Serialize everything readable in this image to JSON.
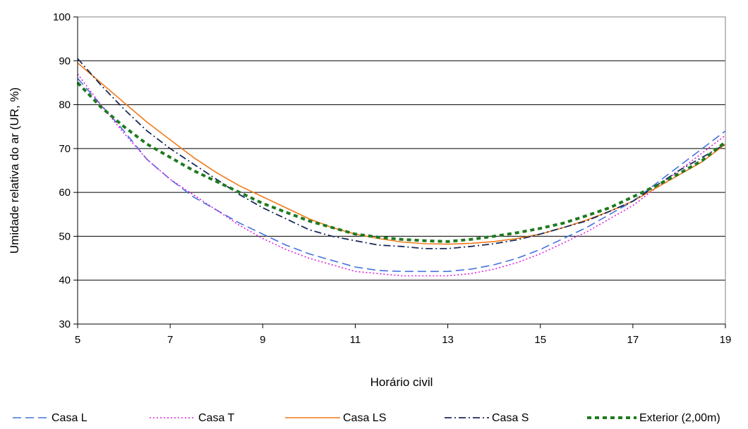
{
  "chart_data": {
    "type": "line",
    "xlabel": "Horário civil",
    "ylabel": "Umidade relativa do ar (UR, %)",
    "xlim": [
      5,
      19
    ],
    "ylim": [
      30,
      100
    ],
    "xticks": [
      "5",
      "7",
      "9",
      "11",
      "13",
      "15",
      "17",
      "19"
    ],
    "yticks": [
      "30",
      "40",
      "50",
      "60",
      "70",
      "80",
      "90",
      "100"
    ],
    "grid": "horizontal",
    "legend_position": "bottom",
    "series": [
      {
        "name": "Casa L",
        "color": "#4472E0",
        "dash": "dashed",
        "x": [
          5,
          5.5,
          6,
          6.5,
          7,
          7.5,
          8,
          8.5,
          9,
          9.5,
          10,
          10.5,
          11,
          11.5,
          12,
          12.5,
          13,
          13.5,
          14,
          14.5,
          15,
          15.5,
          16,
          16.5,
          17,
          17.5,
          18,
          18.5,
          19
        ],
        "values": [
          86,
          80,
          74,
          67.5,
          63,
          59,
          56,
          53,
          50.5,
          48,
          46,
          44.5,
          43,
          42.2,
          42,
          42,
          42,
          42.5,
          43.5,
          45,
          47,
          49.5,
          52,
          55,
          58,
          62,
          66,
          70,
          74
        ]
      },
      {
        "name": "Casa T",
        "color": "#E020E0",
        "dash": "dotted",
        "x": [
          5,
          5.5,
          6,
          6.5,
          7,
          7.5,
          8,
          8.5,
          9,
          9.5,
          10,
          10.5,
          11,
          11.5,
          12,
          12.5,
          13,
          13.5,
          14,
          14.5,
          15,
          15.5,
          16,
          16.5,
          17,
          17.5,
          18,
          18.5,
          19
        ],
        "values": [
          87,
          80,
          73.5,
          67.5,
          63,
          59.5,
          56,
          52.5,
          49.5,
          47,
          45,
          43.5,
          42,
          41.5,
          41,
          41,
          41,
          41.5,
          42.5,
          44,
          46,
          48.5,
          51,
          54,
          57,
          61,
          65,
          69,
          73
        ]
      },
      {
        "name": "Casa LS",
        "color": "#F07A1A",
        "dash": "solid",
        "x": [
          5,
          5.5,
          6,
          6.5,
          7,
          7.5,
          8,
          8.5,
          9,
          9.5,
          10,
          10.5,
          11,
          11.5,
          12,
          12.5,
          13,
          13.5,
          14,
          14.5,
          15,
          15.5,
          16,
          16.5,
          17,
          17.5,
          18,
          18.5,
          19
        ],
        "values": [
          89.5,
          85,
          80.5,
          76,
          72,
          68,
          64.5,
          61.5,
          59,
          56.5,
          54,
          52,
          50.5,
          49.5,
          48.7,
          48.3,
          48.2,
          48.4,
          48.8,
          49.5,
          50.5,
          52,
          53.7,
          55.7,
          58,
          61,
          64,
          67,
          71
        ]
      },
      {
        "name": "Casa S",
        "color": "#1A2A5A",
        "dash": "dashdot",
        "x": [
          5,
          5.5,
          6,
          6.5,
          7,
          7.5,
          8,
          8.5,
          9,
          9.5,
          10,
          10.5,
          11,
          11.5,
          12,
          12.5,
          13,
          13.5,
          14,
          14.5,
          15,
          15.5,
          16,
          16.5,
          17,
          17.5,
          18,
          18.5,
          19
        ],
        "values": [
          90.5,
          84.5,
          79,
          74,
          70,
          66.5,
          63,
          59.5,
          56.5,
          54,
          51.5,
          50,
          49,
          48,
          47.7,
          47.2,
          47.2,
          47.7,
          48.3,
          49.2,
          50.5,
          52,
          53.5,
          55.7,
          58,
          61.5,
          65,
          68,
          71
        ]
      },
      {
        "name": "Exterior (2,00m)",
        "color": "#1E7A1E",
        "dash": "bolddashed",
        "x": [
          5,
          5.5,
          6,
          6.5,
          7,
          7.5,
          8,
          8.5,
          9,
          9.5,
          10,
          10.5,
          11,
          11.5,
          12,
          12.5,
          13,
          13.5,
          14,
          14.5,
          15,
          15.5,
          16,
          16.5,
          17,
          17.5,
          18,
          18.5,
          19
        ],
        "values": [
          85,
          79.5,
          75,
          71,
          68,
          65,
          62.5,
          60,
          57.5,
          55.5,
          53.5,
          52,
          50.5,
          49.8,
          49.3,
          49,
          48.8,
          49.3,
          50,
          50.8,
          51.8,
          53,
          54.7,
          56.5,
          59,
          61.5,
          64.3,
          67.3,
          71.5
        ]
      }
    ]
  }
}
